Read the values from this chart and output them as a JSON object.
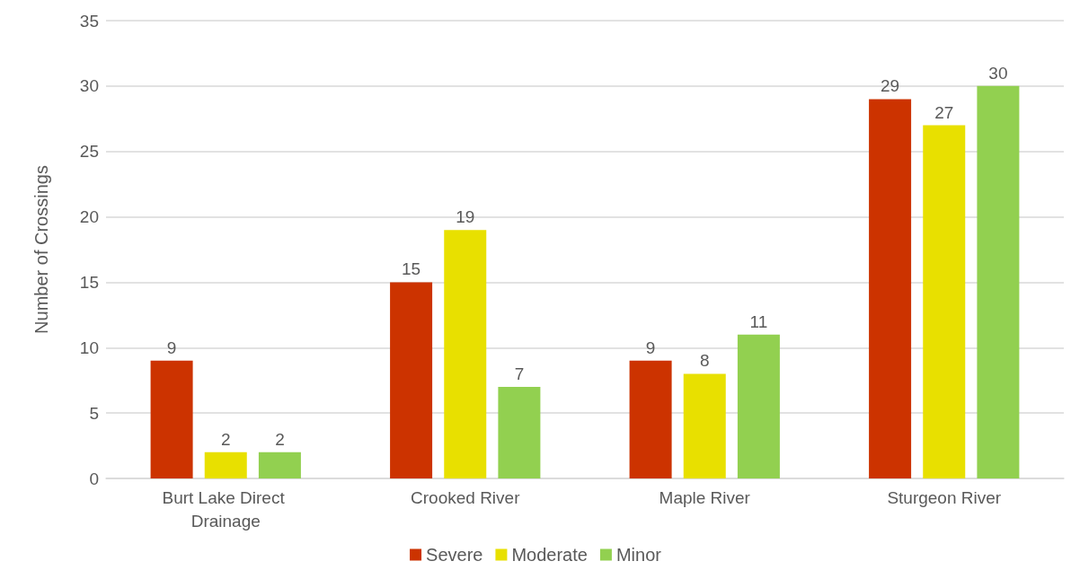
{
  "chart_data": {
    "type": "bar",
    "ylabel": "Number of Crossings",
    "categories": [
      "Burt Lake Direct Drainage",
      "Crooked River",
      "Maple River",
      "Sturgeon River"
    ],
    "series": [
      {
        "name": "Severe",
        "color": "#cc3300",
        "values": [
          9,
          15,
          9,
          29
        ]
      },
      {
        "name": "Moderate",
        "color": "#e8e000",
        "values": [
          2,
          19,
          8,
          27
        ]
      },
      {
        "name": "Minor",
        "color": "#92d050",
        "values": [
          2,
          7,
          11,
          30
        ]
      }
    ],
    "ylim": [
      0,
      35
    ],
    "yticks": [
      0,
      5,
      10,
      15,
      20,
      25,
      30,
      35
    ],
    "grid": "y",
    "legend": "bottom",
    "data_labels": true
  }
}
